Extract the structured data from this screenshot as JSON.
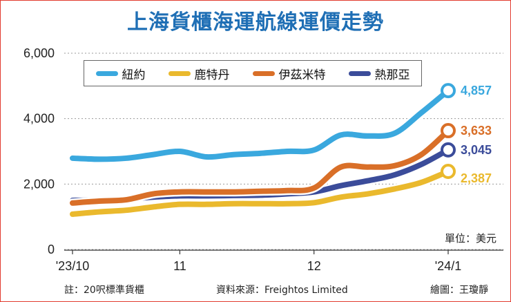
{
  "chart_data": {
    "type": "line",
    "title": "上海貨櫃海運航線運價走勢",
    "unit_label": "單位：美元",
    "ylim": [
      0,
      6000
    ],
    "yticks": [
      0,
      2000,
      4000,
      6000
    ],
    "ytick_labels": [
      "0",
      "2,000",
      "4,000",
      "6,000"
    ],
    "x_tick_labels": [
      {
        "label": "'23/10",
        "at": 0
      },
      {
        "label": "11",
        "at": 4
      },
      {
        "label": "12",
        "at": 9
      },
      {
        "label": "'24/1",
        "at": 14
      }
    ],
    "x": [
      "'23/10",
      "",
      "",
      "",
      "11",
      "",
      "",
      "",
      "",
      "12",
      "",
      "",
      "",
      "",
      "'24/1"
    ],
    "series": [
      {
        "name": "紐約",
        "color": "#3aa8de",
        "values": [
          2790,
          2760,
          2790,
          2900,
          3000,
          2830,
          2900,
          2940,
          3000,
          3040,
          3500,
          3470,
          3550,
          4180,
          4857
        ],
        "last_label": "4,857"
      },
      {
        "name": "鹿特丹",
        "color": "#eab92d",
        "values": [
          1080,
          1150,
          1200,
          1300,
          1380,
          1380,
          1400,
          1400,
          1400,
          1430,
          1600,
          1700,
          1850,
          2050,
          2387
        ],
        "last_label": "2,387"
      },
      {
        "name": "伊茲米特",
        "color": "#d96f28",
        "values": [
          1420,
          1480,
          1520,
          1700,
          1760,
          1760,
          1760,
          1780,
          1800,
          1880,
          2520,
          2520,
          2560,
          2900,
          3633
        ],
        "last_label": "3,633"
      },
      {
        "name": "熱那亞",
        "color": "#3b4c9a",
        "values": [
          1500,
          1510,
          1540,
          1600,
          1640,
          1640,
          1650,
          1660,
          1700,
          1760,
          1950,
          2100,
          2280,
          2600,
          3045
        ],
        "last_label": "3,045"
      }
    ]
  },
  "footer": {
    "note": "註：20呎標準貨櫃",
    "source": "資料來源：Freightos Limited",
    "credit": "繪圖：王瓊靜"
  }
}
